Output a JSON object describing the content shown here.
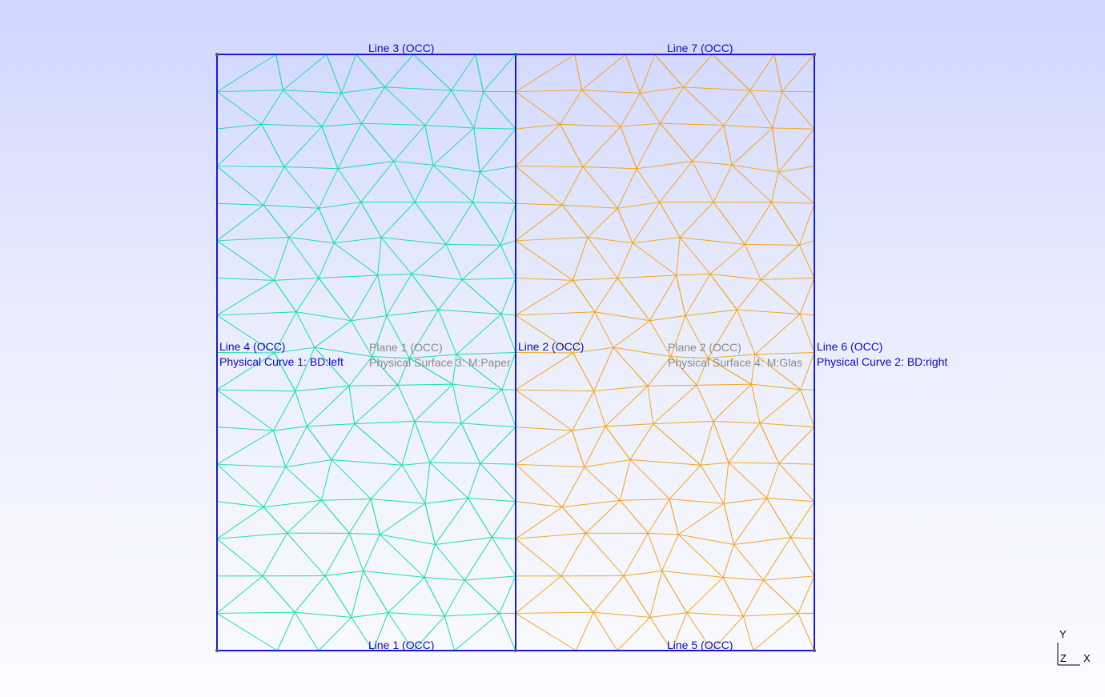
{
  "labels": {
    "line3": "Line 3 (OCC)",
    "line7": "Line 7 (OCC)",
    "line1": "Line 1 (OCC)",
    "line5": "Line 5 (OCC)",
    "line4": "Line 4 (OCC)",
    "line2": "Line 2 (OCC)",
    "line6": "Line 6 (OCC)",
    "phys_curve1": "Physical Curve 1: BD:left",
    "phys_curve2": "Physical Curve 2: BD:right",
    "plane1": "Plane 1 (OCC)",
    "plane2": "Plane 2 (OCC)",
    "phys_surface3": "Physical Surface 3: M:Paper",
    "phys_surface4": "Physical Surface 4: M:Glas"
  },
  "axes": {
    "y": "Y",
    "z": "Z",
    "x": "X"
  },
  "colors": {
    "boundary": "#1a1ad0",
    "mesh_left": "#19e0a8",
    "mesh_right": "#f5a51e",
    "label_blue": "#0a0acc",
    "label_grey": "#8a8a8a"
  }
}
